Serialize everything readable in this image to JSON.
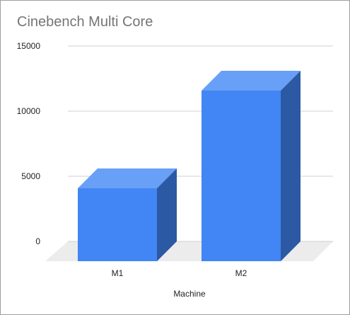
{
  "chart_data": {
    "type": "bar",
    "title": "Cinebench Multi Core",
    "xlabel": "Machine",
    "ylabel": "",
    "categories": [
      "M1",
      "M2"
    ],
    "values": [
      5600,
      13100
    ],
    "ylim": [
      0,
      15000
    ],
    "yticks": [
      0,
      5000,
      10000,
      15000
    ],
    "grid": true,
    "style": "3d",
    "colors": {
      "front": "#4285f4",
      "top": "#68a0f7",
      "side": "#2c59a3",
      "floor": "#ececec",
      "grid": "#d0d0d0"
    }
  }
}
